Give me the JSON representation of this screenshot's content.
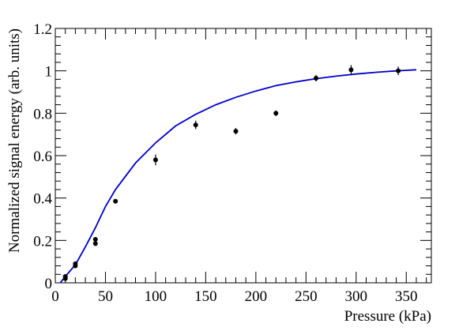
{
  "chart_data": {
    "type": "scatter",
    "title": "",
    "xlabel": "Pressure (kPa)",
    "ylabel": "Normalized signal energy (arb. units)",
    "xlim": [
      0,
      375
    ],
    "ylim": [
      0,
      1.2
    ],
    "x_ticks": [
      0,
      50,
      100,
      150,
      200,
      250,
      300,
      350
    ],
    "x_tick_labels": [
      "0",
      "50",
      "100",
      "150",
      "200",
      "250",
      "300",
      "350"
    ],
    "y_ticks": [
      0,
      0.2,
      0.4,
      0.6,
      0.8,
      1.0,
      1.2
    ],
    "y_tick_labels": [
      "0",
      "0.2",
      "0.4",
      "0.6",
      "0.8",
      "1",
      "1.2"
    ],
    "grid": false,
    "colors": {
      "points": "#000000",
      "curve": "#0000cc"
    },
    "series": [
      {
        "kind": "points",
        "x": [
          10,
          10,
          20,
          20,
          40,
          40,
          60,
          100,
          140,
          180,
          220,
          260,
          295,
          342
        ],
        "y": [
          0.02,
          0.03,
          0.08,
          0.09,
          0.185,
          0.205,
          0.385,
          0.58,
          0.745,
          0.715,
          0.8,
          0.965,
          1.005,
          1.0
        ],
        "yerr": [
          0.008,
          0.008,
          0.01,
          0.01,
          0.01,
          0.01,
          0.01,
          0.025,
          0.02,
          0.015,
          0.013,
          0.015,
          0.022,
          0.02
        ]
      },
      {
        "kind": "curve",
        "x": [
          5,
          10,
          20,
          30,
          40,
          50,
          60,
          80,
          100,
          120,
          140,
          160,
          180,
          200,
          220,
          240,
          260,
          280,
          300,
          320,
          340,
          360
        ],
        "y": [
          0.0,
          0.03,
          0.085,
          0.17,
          0.26,
          0.36,
          0.44,
          0.565,
          0.66,
          0.74,
          0.795,
          0.84,
          0.875,
          0.905,
          0.93,
          0.948,
          0.963,
          0.975,
          0.985,
          0.993,
          1.0,
          1.005
        ]
      }
    ]
  }
}
